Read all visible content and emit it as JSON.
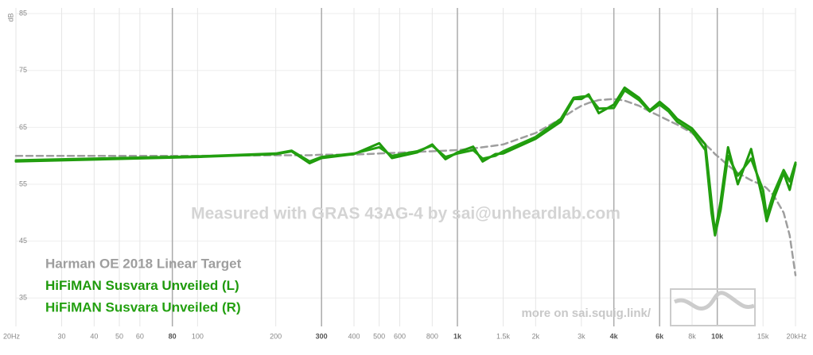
{
  "chart_data": {
    "type": "line",
    "xscale": "log",
    "grid": true,
    "y_label": "dB",
    "watermark": "Measured with GRAS 43AG-4 by sai@unheardlab.com",
    "footer": "more on sai.squig.link/",
    "xlim": [
      20,
      20000
    ],
    "ylim": [
      30,
      86
    ],
    "yticks": [
      35,
      45,
      55,
      65,
      75,
      85
    ],
    "xticks": [
      {
        "value": 20,
        "label": "20Hz"
      },
      30,
      40,
      50,
      60,
      80,
      100,
      200,
      300,
      400,
      500,
      600,
      800,
      {
        "value": 1000,
        "label": "1k"
      },
      {
        "value": 1500,
        "label": "1.5k"
      },
      {
        "value": 2000,
        "label": "2k"
      },
      {
        "value": 3000,
        "label": "3k"
      },
      {
        "value": 4000,
        "label": "4k"
      },
      {
        "value": 6000,
        "label": "6k"
      },
      {
        "value": 8000,
        "label": "8k"
      },
      {
        "value": 10000,
        "label": "10k"
      },
      {
        "value": 15000,
        "label": "15k"
      },
      {
        "value": 20000,
        "label": "20kHz"
      }
    ],
    "emphasized_xticks": [
      80,
      300,
      1000,
      4000,
      6000,
      10000
    ],
    "x": [
      20,
      100,
      200,
      230,
      270,
      300,
      400,
      500,
      560,
      700,
      800,
      900,
      1000,
      1150,
      1250,
      1400,
      1500,
      2000,
      2500,
      2800,
      3000,
      3200,
      3500,
      4000,
      4400,
      5000,
      5500,
      6000,
      6500,
      7000,
      8000,
      9000,
      9500,
      9800,
      10300,
      11000,
      12000,
      13500,
      15000,
      15500,
      16500,
      18000,
      19000,
      20000
    ],
    "series": [
      {
        "name": "Harman OE 2018 Linear Target",
        "color": "#9e9e9e",
        "dashed": true,
        "values": [
          60,
          60,
          60.1,
          60.1,
          60.1,
          60.2,
          60.2,
          60.4,
          60.5,
          60.7,
          60.8,
          60.9,
          61,
          61.3,
          61.5,
          61.8,
          62,
          64,
          66.5,
          68,
          68.8,
          69.3,
          69.8,
          70,
          69.7,
          68.8,
          67.8,
          67,
          66.2,
          65.5,
          64,
          62,
          61,
          60.3,
          59.5,
          58.3,
          57,
          55.7,
          54.8,
          54.3,
          53,
          50,
          46,
          39
        ]
      },
      {
        "name": "HiFiMAN Susvara Unveiled (L)",
        "color": "#1f9a0c",
        "values": [
          59,
          59.8,
          60.3,
          60.8,
          58.7,
          59.6,
          60.3,
          62.2,
          59.6,
          60.6,
          62,
          59.4,
          60.6,
          61.6,
          59,
          60.3,
          60.4,
          63,
          66,
          70,
          70,
          70.8,
          67.5,
          69,
          72,
          70.2,
          68,
          69.5,
          68.2,
          66.5,
          64.8,
          62,
          52,
          46.5,
          52,
          61.5,
          55,
          61.2,
          52,
          48.5,
          52.5,
          57,
          54,
          58.5
        ]
      },
      {
        "name": "HiFiMAN Susvara Unveiled (R)",
        "color": "#23a010",
        "values": [
          59.2,
          59.9,
          60.4,
          60.9,
          59,
          59.8,
          60.4,
          61.5,
          60,
          60.8,
          61.8,
          59.8,
          60.4,
          61,
          59.5,
          60,
          60.8,
          63.3,
          66.5,
          70.2,
          70.4,
          70.5,
          68.3,
          68.4,
          71.5,
          69.8,
          67.8,
          69,
          67.8,
          66,
          64.3,
          61,
          50,
          46,
          50.5,
          60,
          56.5,
          59.5,
          54,
          49.5,
          53.5,
          57.5,
          55.5,
          58.8
        ]
      }
    ]
  }
}
